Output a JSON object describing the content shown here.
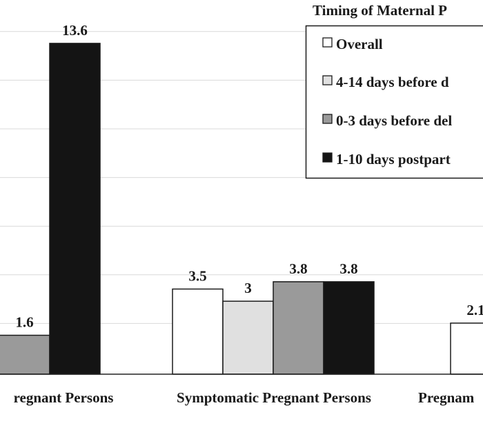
{
  "chart_data": {
    "type": "bar",
    "legend_title": "Timing of Maternal P",
    "legend_position": "top-right",
    "grid": true,
    "ylim": [
      0,
      15
    ],
    "categories": [
      "regnant Persons",
      "Symptomatic Pregnant Persons",
      "Pregnam"
    ],
    "series": [
      {
        "name": "Overall",
        "color": "#ffffff",
        "values": [
          null,
          3.5,
          2.1
        ]
      },
      {
        "name": "4-14 days before d",
        "color": "#e0e0e0",
        "values": [
          null,
          3,
          null
        ]
      },
      {
        "name": "0-3 days before del",
        "color": "#9a9a9a",
        "values": [
          1.6,
          3.8,
          null
        ]
      },
      {
        "name": "1-10 days postpart",
        "color": "#141414",
        "values": [
          13.6,
          3.8,
          null
        ]
      }
    ],
    "data_labels": [
      {
        "text": "1.6",
        "series": 2,
        "category": 0
      },
      {
        "text": "13.6",
        "series": 3,
        "category": 0
      },
      {
        "text": "3.5",
        "series": 0,
        "category": 1
      },
      {
        "text": "3",
        "series": 1,
        "category": 1
      },
      {
        "text": "3.8",
        "series": 2,
        "category": 1
      },
      {
        "text": "3.8",
        "series": 3,
        "category": 1
      },
      {
        "text": "2.1",
        "series": 0,
        "category": 2
      }
    ]
  }
}
